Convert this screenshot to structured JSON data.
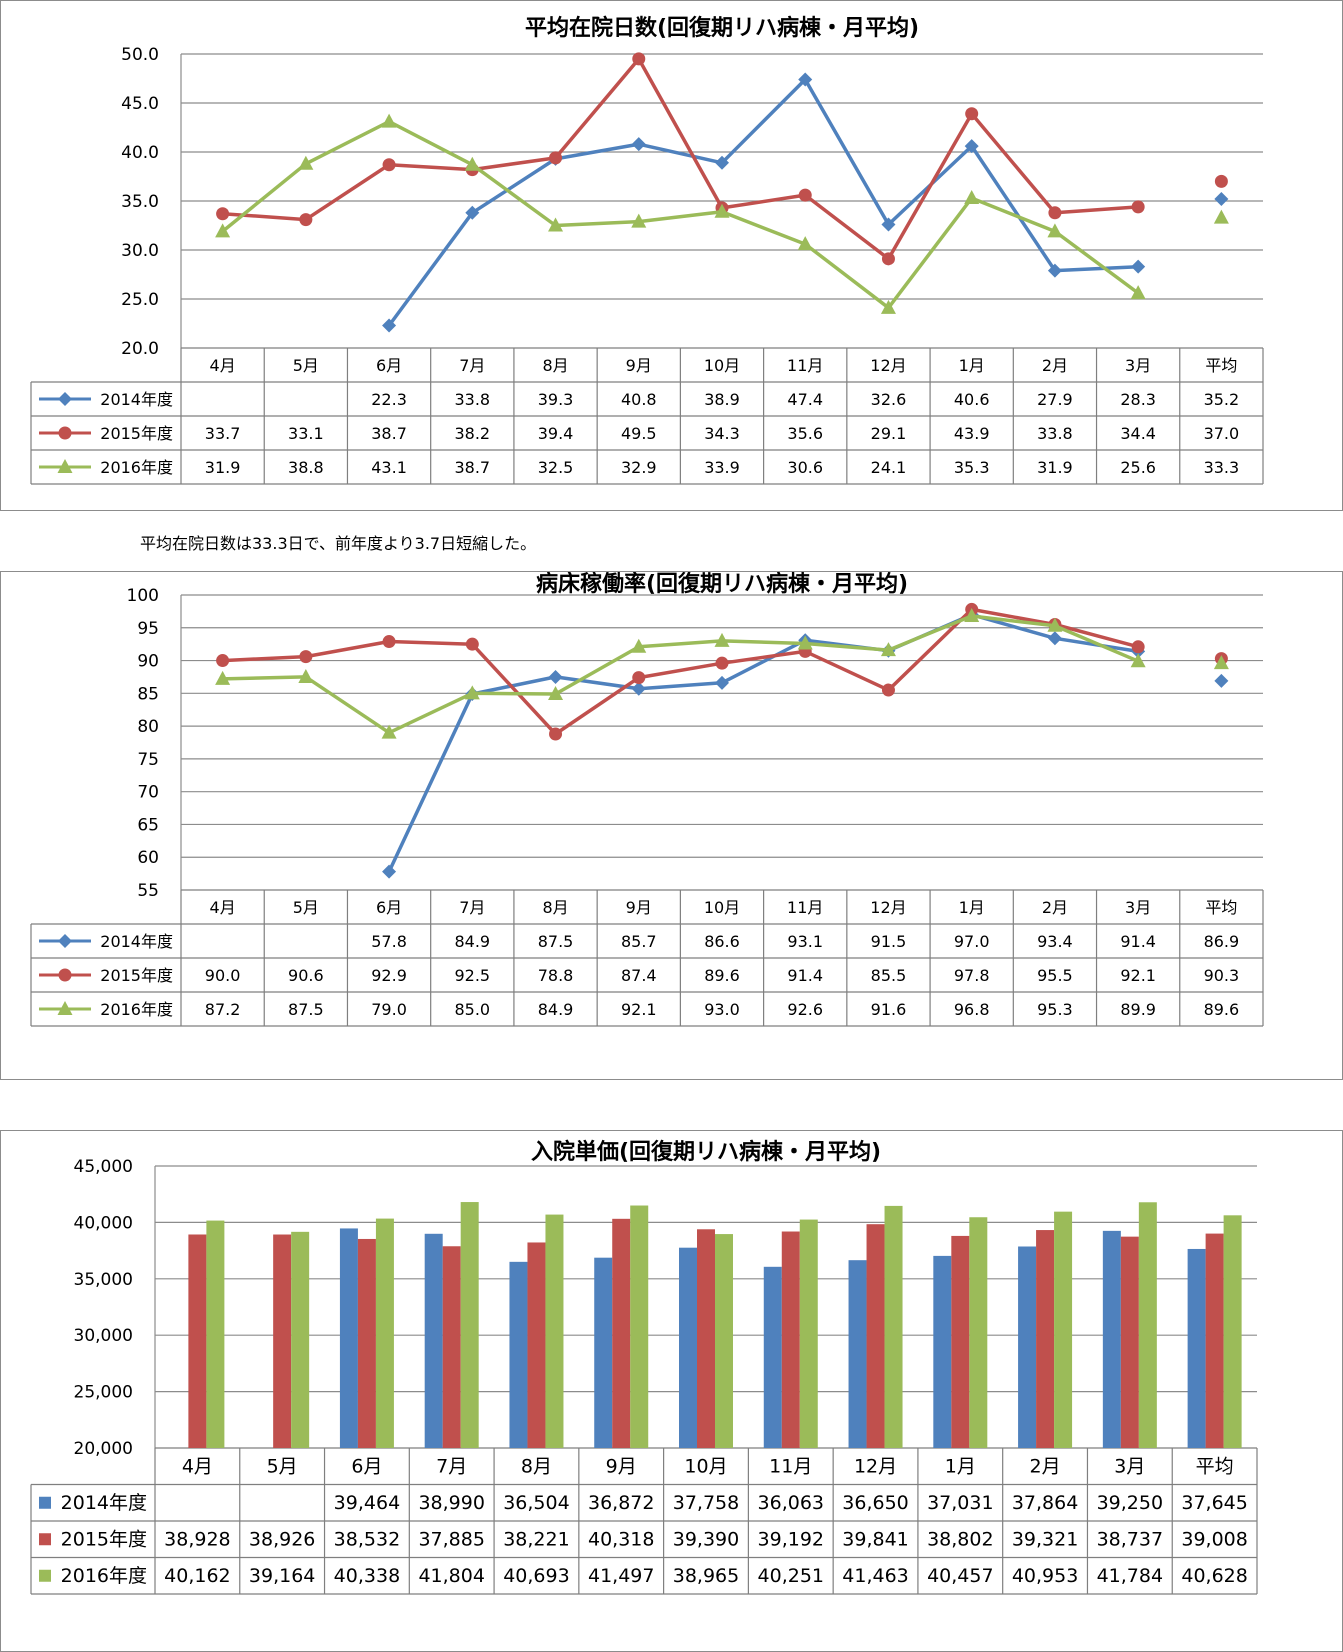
{
  "categories": [
    "4月",
    "5月",
    "6月",
    "7月",
    "8月",
    "9月",
    "10月",
    "11月",
    "12月",
    "1月",
    "2月",
    "3月",
    "平均"
  ],
  "colors": {
    "s2014": "#4f81bd",
    "s2015": "#c0504d",
    "s2016": "#9bbb59"
  },
  "note": "平均在院日数は33.3日で、前年度より3.7日短縮した。",
  "chart_data": [
    {
      "type": "line",
      "title": "平均在院日数(回復期リハ病棟・月平均)",
      "ylim": [
        20,
        50
      ],
      "ytick_step": 5,
      "ytick_decimals": 1,
      "cell_decimals": 1,
      "grid": true,
      "legend": "data-table-left",
      "series": [
        {
          "name": "2014年度",
          "values": [
            null,
            null,
            22.3,
            33.8,
            39.3,
            40.8,
            38.9,
            47.4,
            32.6,
            40.6,
            27.9,
            28.3,
            35.2
          ]
        },
        {
          "name": "2015年度",
          "values": [
            33.7,
            33.1,
            38.7,
            38.2,
            39.4,
            49.5,
            34.3,
            35.6,
            29.1,
            43.9,
            33.8,
            34.4,
            37.0
          ]
        },
        {
          "name": "2016年度",
          "values": [
            31.9,
            38.8,
            43.1,
            38.7,
            32.5,
            32.9,
            33.9,
            30.6,
            24.1,
            35.3,
            31.9,
            25.6,
            33.3
          ]
        }
      ]
    },
    {
      "type": "line",
      "title": "病床稼働率(回復期リハ病棟・月平均)",
      "ylim": [
        55,
        100
      ],
      "ytick_step": 5,
      "ytick_decimals": 0,
      "cell_decimals": 1,
      "grid": true,
      "legend": "data-table-left",
      "series": [
        {
          "name": "2014年度",
          "values": [
            null,
            null,
            57.8,
            84.9,
            87.5,
            85.7,
            86.6,
            93.1,
            91.5,
            97.0,
            93.4,
            91.4,
            86.9
          ]
        },
        {
          "name": "2015年度",
          "values": [
            90.0,
            90.6,
            92.9,
            92.5,
            78.8,
            87.4,
            89.6,
            91.4,
            85.5,
            97.8,
            95.5,
            92.1,
            90.3
          ]
        },
        {
          "name": "2016年度",
          "values": [
            87.2,
            87.5,
            79.0,
            85.0,
            84.9,
            92.1,
            93.0,
            92.6,
            91.6,
            96.8,
            95.3,
            89.9,
            89.6
          ]
        }
      ]
    },
    {
      "type": "bar",
      "title": "入院単価(回復期リハ病棟・月平均)",
      "ylim": [
        20000,
        45000
      ],
      "ytick_step": 5000,
      "ytick_decimals": 0,
      "cell_decimals": 0,
      "grid": true,
      "legend": "data-table-left",
      "series": [
        {
          "name": "2014年度",
          "values": [
            null,
            null,
            39464,
            38990,
            36504,
            36872,
            37758,
            36063,
            36650,
            37031,
            37864,
            39250,
            37645
          ]
        },
        {
          "name": "2015年度",
          "values": [
            38928,
            38926,
            38532,
            37885,
            38221,
            40318,
            39390,
            39192,
            39841,
            38802,
            39321,
            38737,
            39008
          ]
        },
        {
          "name": "2016年度",
          "values": [
            40162,
            39164,
            40338,
            41804,
            40693,
            41497,
            38965,
            40251,
            41463,
            40457,
            40953,
            41784,
            40628
          ]
        }
      ]
    }
  ]
}
